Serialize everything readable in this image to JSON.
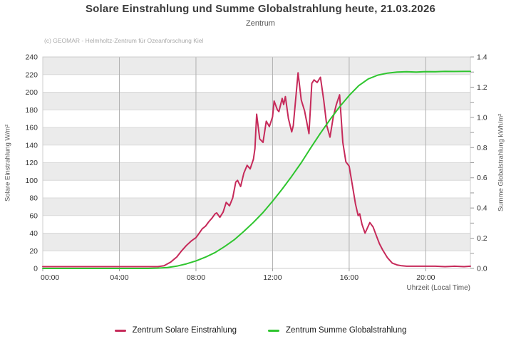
{
  "header": {
    "title": "Solare Einstrahlung und Summe Globalstrahlung heute, 21.03.2026",
    "subtitle": "Zentrum",
    "copyright": "(c) GEOMAR - Helmholtz-Zentrum für Ozeanforschung Kiel"
  },
  "colors": {
    "solare": "#C62A5A",
    "summe": "#2EC52E",
    "band": "#ebebeb",
    "band_line": "#d9d9d9",
    "vgrid": "#b0b0b0",
    "border": "#cccccc",
    "tick": "#999999",
    "tick_label": "#333333"
  },
  "chart_data": {
    "type": "line",
    "title": "Solare Einstrahlung und Summe Globalstrahlung heute, 21.03.2026",
    "subtitle": "Zentrum",
    "x_axis": {
      "label": "Uhrzeit (Local Time)",
      "range_hours": [
        0,
        22.33
      ],
      "tick_hours": [
        0,
        4,
        8,
        12,
        16,
        20
      ],
      "tick_labels": [
        "00:00",
        "04:00",
        "08:00",
        "12:00",
        "16:00",
        "20:00"
      ]
    },
    "y_axis_left": {
      "label": "Solare Einstrahlung W/m²",
      "range": [
        0,
        240
      ],
      "tick_step": 20,
      "tick_labels": [
        "0",
        "20",
        "40",
        "60",
        "80",
        "100",
        "120",
        "140",
        "160",
        "180",
        "200",
        "220",
        "240"
      ]
    },
    "y_axis_right": {
      "label": "Summe Globalstrahlung kWh/m²",
      "range": [
        0,
        1.4
      ],
      "tick_step": 0.2,
      "minor_tick_step": 0.1,
      "tick_labels": [
        "0.0",
        "0.2",
        "0.4",
        "0.6",
        "0.8",
        "1.0",
        "1.2",
        "1.4"
      ]
    },
    "grid": {
      "alternating_bands": true,
      "band_unit": 20
    },
    "legend_position": "bottom",
    "series": [
      {
        "name": "Zentrum Solare Einstrahlung",
        "axis": "left",
        "unit": "W/m²",
        "points": [
          [
            0,
            2
          ],
          [
            0.5,
            2
          ],
          [
            1,
            2
          ],
          [
            1.5,
            2
          ],
          [
            2,
            2
          ],
          [
            2.5,
            2
          ],
          [
            3,
            2
          ],
          [
            3.5,
            2
          ],
          [
            4,
            2
          ],
          [
            4.5,
            2
          ],
          [
            5,
            2
          ],
          [
            5.5,
            2
          ],
          [
            6,
            2
          ],
          [
            6.33,
            3
          ],
          [
            6.67,
            7
          ],
          [
            7,
            13
          ],
          [
            7.25,
            20
          ],
          [
            7.5,
            26
          ],
          [
            7.75,
            31
          ],
          [
            8,
            35
          ],
          [
            8.17,
            40
          ],
          [
            8.33,
            45
          ],
          [
            8.5,
            48
          ],
          [
            8.67,
            53
          ],
          [
            8.83,
            57
          ],
          [
            9,
            62
          ],
          [
            9.08,
            63
          ],
          [
            9.25,
            58
          ],
          [
            9.42,
            64
          ],
          [
            9.58,
            75
          ],
          [
            9.75,
            71
          ],
          [
            9.92,
            80
          ],
          [
            10.08,
            98
          ],
          [
            10.17,
            100
          ],
          [
            10.33,
            93
          ],
          [
            10.5,
            108
          ],
          [
            10.67,
            117
          ],
          [
            10.83,
            113
          ],
          [
            11,
            124
          ],
          [
            11.08,
            136
          ],
          [
            11.17,
            175
          ],
          [
            11.33,
            147
          ],
          [
            11.5,
            143
          ],
          [
            11.67,
            167
          ],
          [
            11.83,
            161
          ],
          [
            12,
            172
          ],
          [
            12.08,
            190
          ],
          [
            12.25,
            180
          ],
          [
            12.33,
            178
          ],
          [
            12.5,
            193
          ],
          [
            12.58,
            186
          ],
          [
            12.67,
            195
          ],
          [
            12.83,
            170
          ],
          [
            13,
            155
          ],
          [
            13.08,
            162
          ],
          [
            13.33,
            222
          ],
          [
            13.5,
            191
          ],
          [
            13.67,
            179
          ],
          [
            13.9,
            153
          ],
          [
            14.05,
            210
          ],
          [
            14.17,
            214
          ],
          [
            14.33,
            211
          ],
          [
            14.5,
            217
          ],
          [
            14.67,
            191
          ],
          [
            14.83,
            162
          ],
          [
            15,
            149
          ],
          [
            15.17,
            172
          ],
          [
            15.33,
            186
          ],
          [
            15.5,
            197
          ],
          [
            15.67,
            143
          ],
          [
            15.83,
            121
          ],
          [
            16,
            116
          ],
          [
            16.17,
            94
          ],
          [
            16.33,
            73
          ],
          [
            16.47,
            60
          ],
          [
            16.55,
            62
          ],
          [
            16.67,
            50
          ],
          [
            16.83,
            40
          ],
          [
            17.08,
            52
          ],
          [
            17.25,
            47
          ],
          [
            17.42,
            37
          ],
          [
            17.58,
            28
          ],
          [
            17.75,
            21
          ],
          [
            18,
            12
          ],
          [
            18.25,
            6
          ],
          [
            18.5,
            4
          ],
          [
            18.75,
            3
          ],
          [
            19,
            2.5
          ],
          [
            19.5,
            2.5
          ],
          [
            20,
            2.5
          ],
          [
            20.5,
            2.5
          ],
          [
            21,
            2
          ],
          [
            21.5,
            2.5
          ],
          [
            22,
            2
          ],
          [
            22.33,
            2.5
          ]
        ]
      },
      {
        "name": "Zentrum Summe Globalstrahlung",
        "axis": "right",
        "unit": "kWh/m²",
        "points": [
          [
            0,
            0
          ],
          [
            0.5,
            0
          ],
          [
            1,
            0
          ],
          [
            1.5,
            0
          ],
          [
            2,
            0
          ],
          [
            2.5,
            0
          ],
          [
            3,
            0
          ],
          [
            3.5,
            0
          ],
          [
            4,
            0
          ],
          [
            4.5,
            0
          ],
          [
            5,
            0
          ],
          [
            5.5,
            0
          ],
          [
            6,
            0.002
          ],
          [
            6.5,
            0.006
          ],
          [
            7,
            0.015
          ],
          [
            7.5,
            0.03
          ],
          [
            8,
            0.05
          ],
          [
            8.5,
            0.075
          ],
          [
            9,
            0.105
          ],
          [
            9.5,
            0.145
          ],
          [
            10,
            0.19
          ],
          [
            10.5,
            0.245
          ],
          [
            11,
            0.305
          ],
          [
            11.5,
            0.37
          ],
          [
            12,
            0.445
          ],
          [
            12.5,
            0.525
          ],
          [
            13,
            0.61
          ],
          [
            13.5,
            0.7
          ],
          [
            14,
            0.8
          ],
          [
            14.5,
            0.895
          ],
          [
            15,
            0.985
          ],
          [
            15.5,
            1.07
          ],
          [
            16,
            1.145
          ],
          [
            16.5,
            1.21
          ],
          [
            17,
            1.255
          ],
          [
            17.5,
            1.28
          ],
          [
            18,
            1.293
          ],
          [
            18.5,
            1.3
          ],
          [
            19,
            1.302
          ],
          [
            19.5,
            1.3
          ],
          [
            20,
            1.303
          ],
          [
            20.5,
            1.302
          ],
          [
            21,
            1.305
          ],
          [
            21.5,
            1.304
          ],
          [
            22,
            1.305
          ],
          [
            22.33,
            1.305
          ]
        ]
      }
    ]
  },
  "legend": {
    "items": [
      {
        "label": "Zentrum Solare Einstrahlung"
      },
      {
        "label": "Zentrum Summe Globalstrahlung"
      }
    ]
  }
}
